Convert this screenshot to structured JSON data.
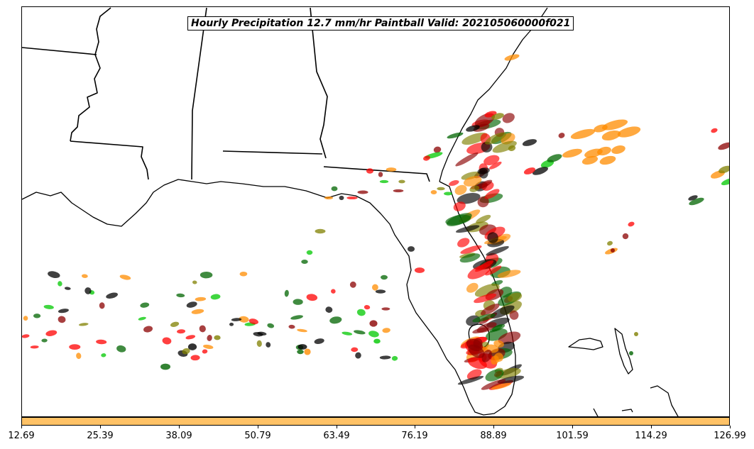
{
  "title": "Hourly Precipitation 12.7 mm/hr Paintball Valid: 202105060000f021",
  "colorbar": {
    "color": "#ffc266",
    "ticks": [
      "12.69",
      "25.39",
      "38.09",
      "50.79",
      "63.49",
      "76.19",
      "88.89",
      "101.59",
      "114.29",
      "126.99"
    ]
  },
  "member_colors": {
    "red": "#ff0000",
    "dark_red": "#8b0000",
    "orange": "#ff8c00",
    "olive": "#808000",
    "green": "#00c800",
    "dark_green": "#006400",
    "black": "#000000"
  }
}
